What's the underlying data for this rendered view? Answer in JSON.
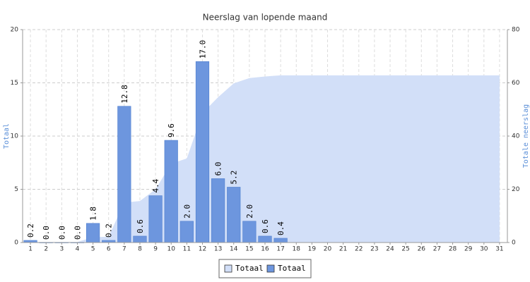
{
  "chart_data": {
    "type": "bar",
    "title": "Neerslag van lopende maand",
    "ylabel": "Totaal",
    "y2label": "Totale neerslag",
    "categories": [
      "1",
      "2",
      "3",
      "4",
      "5",
      "6",
      "7",
      "8",
      "9",
      "10",
      "11",
      "12",
      "13",
      "14",
      "15",
      "16",
      "17",
      "18",
      "19",
      "20",
      "21",
      "22",
      "23",
      "24",
      "25",
      "26",
      "27",
      "28",
      "29",
      "30",
      "31"
    ],
    "series": [
      {
        "name": "Totaal",
        "type": "area",
        "axis": "y2",
        "color": "#d2dff8",
        "values": [
          0.2,
          0.2,
          0.2,
          0.2,
          2.0,
          2.2,
          15.0,
          15.6,
          20.0,
          29.6,
          31.6,
          48.6,
          54.6,
          59.8,
          61.8,
          62.4,
          62.8,
          62.8,
          62.8,
          62.8,
          62.8,
          62.8,
          62.8,
          62.8,
          62.8,
          62.8,
          62.8,
          62.8,
          62.8,
          62.8,
          62.8
        ]
      },
      {
        "name": "Totaal",
        "type": "bar",
        "color": "#6d96de",
        "values": [
          0.2,
          0,
          0,
          0,
          1.8,
          0.2,
          12.8,
          0.6,
          4.4,
          9.6,
          2.0,
          17.0,
          6.0,
          5.2,
          2.0,
          0.6,
          0.4,
          null,
          null,
          null,
          null,
          null,
          null,
          null,
          null,
          null,
          null,
          null,
          null,
          null,
          null
        ],
        "value_labels": [
          "0.2",
          "0.0",
          "0.0",
          "0.0",
          "1.8",
          "0.2",
          "12.8",
          "0.6",
          "4.4",
          "9.6",
          "2.0",
          "17.0",
          "6.0",
          "5.2",
          "2.0",
          "0.6",
          "0.4",
          null,
          null,
          null,
          null,
          null,
          null,
          null,
          null,
          null,
          null,
          null,
          null,
          null,
          null
        ]
      }
    ],
    "ylim": [
      0,
      20
    ],
    "yticks": [
      0,
      5,
      10,
      15,
      20
    ],
    "y2lim": [
      0,
      80
    ],
    "y2ticks": [
      0,
      20,
      40,
      60,
      80
    ],
    "grid": true,
    "legend": "bottom"
  }
}
